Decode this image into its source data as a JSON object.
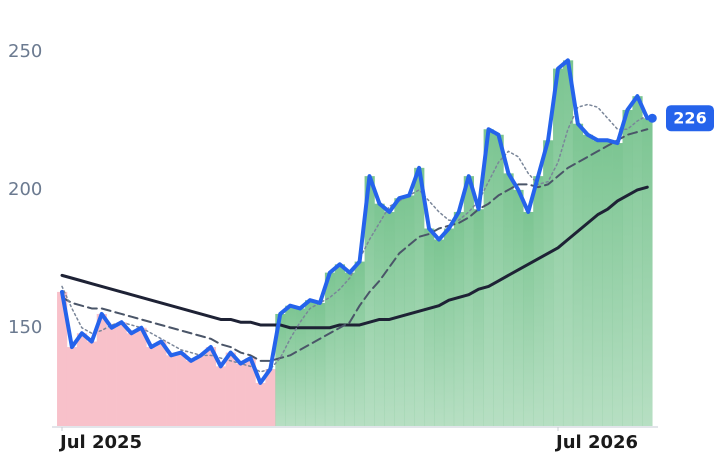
{
  "chart_data": {
    "type": "line",
    "categories": [
      "Jul 2025",
      null,
      null,
      null,
      null,
      null,
      null,
      null,
      null,
      null,
      null,
      null,
      null,
      null,
      null,
      null,
      null,
      null,
      null,
      null,
      null,
      null,
      null,
      null,
      null,
      null,
      null,
      null,
      null,
      null,
      null,
      null,
      null,
      null,
      null,
      null,
      null,
      null,
      null,
      null,
      null,
      null,
      null,
      null,
      null,
      null,
      null,
      null,
      null,
      null,
      "Jul 2026",
      null,
      null,
      null,
      null,
      null,
      null,
      null,
      null,
      null
    ],
    "ylim": [
      114,
      258
    ],
    "yticks": [
      150,
      200,
      250
    ],
    "up_color": "#7cc592",
    "down_color": "#f8c1ca",
    "series": [
      {
        "color": "#2563eb",
        "style": "solid",
        "width": 4,
        "values": [
          163,
          143,
          148,
          145,
          155,
          150,
          152,
          148,
          150,
          143,
          145,
          140,
          141,
          138,
          140,
          143,
          136,
          141,
          137,
          139,
          130,
          135,
          155,
          158,
          157,
          160,
          159,
          170,
          173,
          170,
          174,
          205,
          195,
          192,
          197,
          198,
          208,
          186,
          182,
          186,
          192,
          205,
          193,
          222,
          220,
          206,
          200,
          192,
          205,
          218,
          244,
          247,
          224,
          220,
          218,
          218,
          217,
          229,
          234,
          226
        ]
      },
      {
        "color": "#7a8699",
        "style": "dotted",
        "width": 1.5,
        "values": [
          165,
          157,
          150,
          148,
          149,
          151,
          152,
          151,
          150,
          148,
          146,
          144,
          142,
          141,
          140,
          140,
          139,
          138,
          137,
          136,
          134,
          135,
          139,
          146,
          152,
          157,
          159,
          161,
          164,
          168,
          175,
          182,
          188,
          194,
          196,
          198,
          200,
          196,
          192,
          189,
          189,
          192,
          196,
          203,
          210,
          214,
          212,
          206,
          202,
          203,
          210,
          222,
          230,
          231,
          230,
          226,
          222,
          222,
          225,
          227
        ]
      },
      {
        "color": "#4a5568",
        "style": "dashed",
        "width": 2,
        "values": [
          161,
          159,
          158,
          157,
          157,
          156,
          155,
          154,
          153,
          152,
          151,
          150,
          149,
          148,
          147,
          146,
          144,
          143,
          141,
          140,
          138,
          138,
          139,
          140,
          142,
          144,
          146,
          148,
          150,
          152,
          158,
          163,
          167,
          172,
          177,
          180,
          183,
          184,
          186,
          187,
          188,
          190,
          193,
          195,
          198,
          200,
          202,
          202,
          201,
          202,
          205,
          208,
          210,
          212,
          214,
          216,
          218,
          220,
          221,
          222
        ]
      },
      {
        "color": "#1e2235",
        "style": "solid",
        "width": 3,
        "values": [
          169,
          168,
          167,
          166,
          165,
          164,
          163,
          162,
          161,
          160,
          159,
          158,
          157,
          156,
          155,
          154,
          153,
          153,
          152,
          152,
          151,
          151,
          151,
          150,
          150,
          150,
          150,
          150,
          151,
          151,
          151,
          152,
          153,
          153,
          154,
          155,
          156,
          157,
          158,
          160,
          161,
          162,
          164,
          165,
          167,
          169,
          171,
          173,
          175,
          177,
          179,
          182,
          185,
          188,
          191,
          193,
          196,
          198,
          200,
          201
        ]
      }
    ]
  }
}
